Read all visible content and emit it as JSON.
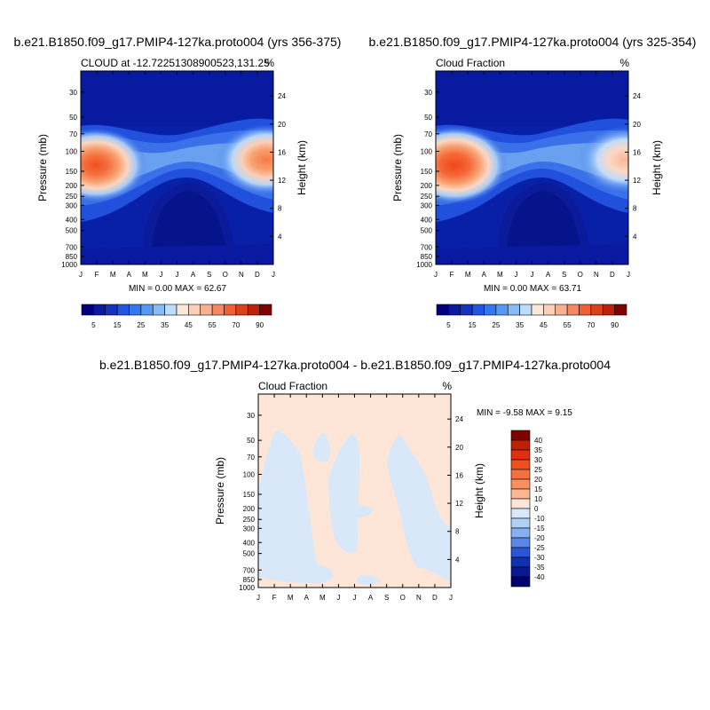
{
  "chart_data": [
    {
      "type": "heatmap",
      "title": "b.e21.B1850.f09_g17.PMIP4-127ka.proto004 (yrs 356-375)",
      "subtitle_left": "CLOUD at -12.72251308900523,131.25",
      "subtitle_right": "%",
      "ylabel": "Pressure (mb)",
      "ylabel_right": "Height (km)",
      "x_ticks": [
        "J",
        "F",
        "M",
        "A",
        "M",
        "J",
        "J",
        "A",
        "S",
        "O",
        "N",
        "D",
        "J"
      ],
      "y_ticks": [
        "30",
        "50",
        "70",
        "100",
        "150",
        "200",
        "250",
        "300",
        "400",
        "500",
        "700",
        "850",
        "1000"
      ],
      "y_right_ticks": [
        "24",
        "20",
        "16",
        "12",
        "8",
        "4"
      ],
      "stats": "MIN =   0.00 MAX =  62.67",
      "colorbar": {
        "labels": [
          "5",
          "15",
          "25",
          "35",
          "45",
          "55",
          "70",
          "90"
        ],
        "colors": [
          "#00007f",
          "#0a1aa0",
          "#1633c0",
          "#2255e0",
          "#3377f0",
          "#5599f5",
          "#88bbf8",
          "#bbddfb",
          "#f8e8d8",
          "#fbd0b8",
          "#f8b090",
          "#f58860",
          "#f06030",
          "#e04018",
          "#c02008",
          "#800000"
        ]
      },
      "peak_value": 62.67
    },
    {
      "type": "heatmap",
      "title": "b.e21.B1850.f09_g17.PMIP4-127ka.proto004 (yrs 325-354)",
      "subtitle_left": "Cloud Fraction",
      "subtitle_right": "%",
      "ylabel": "Pressure (mb)",
      "ylabel_right": "Height (km)",
      "x_ticks": [
        "J",
        "F",
        "M",
        "A",
        "M",
        "J",
        "J",
        "A",
        "S",
        "O",
        "N",
        "D",
        "J"
      ],
      "y_ticks": [
        "30",
        "50",
        "70",
        "100",
        "150",
        "200",
        "250",
        "300",
        "400",
        "500",
        "700",
        "850",
        "1000"
      ],
      "y_right_ticks": [
        "24",
        "20",
        "16",
        "12",
        "8",
        "4"
      ],
      "stats": "MIN =   0.00 MAX =  63.71",
      "colorbar": {
        "labels": [
          "5",
          "15",
          "25",
          "35",
          "45",
          "55",
          "70",
          "90"
        ],
        "colors": [
          "#00007f",
          "#0a1aa0",
          "#1633c0",
          "#2255e0",
          "#3377f0",
          "#5599f5",
          "#88bbf8",
          "#bbddfb",
          "#f8e8d8",
          "#fbd0b8",
          "#f8b090",
          "#f58860",
          "#f06030",
          "#e04018",
          "#c02008",
          "#800000"
        ]
      },
      "peak_value": 63.71
    },
    {
      "type": "heatmap",
      "title": "b.e21.B1850.f09_g17.PMIP4-127ka.proto004 - b.e21.B1850.f09_g17.PMIP4-127ka.proto004",
      "subtitle_left": "Cloud Fraction",
      "subtitle_right": "%",
      "ylabel": "Pressure (mb)",
      "ylabel_right": "Height (km)",
      "x_ticks": [
        "J",
        "F",
        "M",
        "A",
        "M",
        "J",
        "J",
        "A",
        "S",
        "O",
        "N",
        "D",
        "J"
      ],
      "y_ticks": [
        "30",
        "50",
        "70",
        "100",
        "150",
        "200",
        "250",
        "300",
        "400",
        "500",
        "700",
        "850",
        "1000"
      ],
      "y_right_ticks": [
        "24",
        "20",
        "16",
        "12",
        "8",
        "4"
      ],
      "stats": "MIN =  -9.58 MAX =   9.15",
      "colorbar": {
        "labels": [
          "40",
          "35",
          "30",
          "25",
          "20",
          "15",
          "10",
          "0",
          "-10",
          "-15",
          "-20",
          "-25",
          "-30",
          "-35",
          "-40"
        ],
        "colors": [
          "#800000",
          "#c02008",
          "#e03010",
          "#f05020",
          "#f57040",
          "#f89060",
          "#fbb890",
          "#fde6d8",
          "#d8e8f8",
          "#b0d0f5",
          "#88b0f0",
          "#5588e8",
          "#2a55d8",
          "#1030b0",
          "#081890",
          "#000070"
        ]
      },
      "peak_value": 9.15
    }
  ]
}
